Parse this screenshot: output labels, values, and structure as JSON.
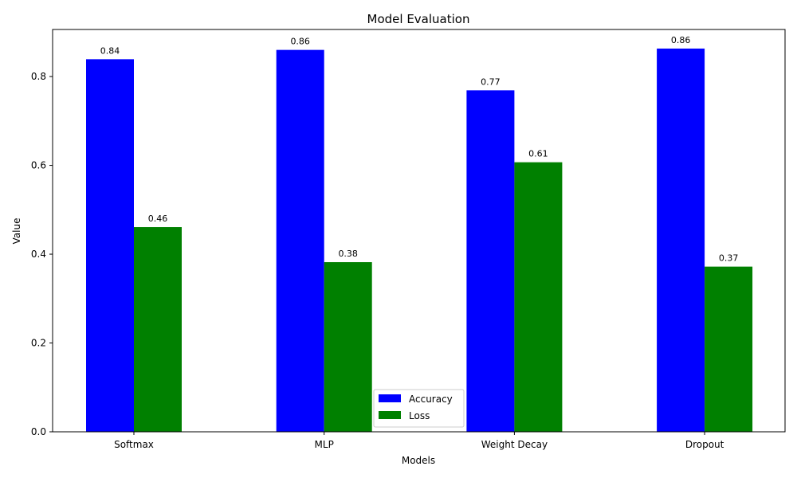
{
  "chart_data": {
    "type": "bar",
    "title": "Model Evaluation",
    "xlabel": "Models",
    "ylabel": "Value",
    "categories": [
      "Softmax",
      "MLP",
      "Weight Decay",
      "Dropout"
    ],
    "series": [
      {
        "name": "Accuracy",
        "color": "#0000ff",
        "values": [
          0.839,
          0.86,
          0.769,
          0.863
        ],
        "labels": [
          "0.84",
          "0.86",
          "0.77",
          "0.86"
        ]
      },
      {
        "name": "Loss",
        "color": "#008000",
        "values": [
          0.461,
          0.382,
          0.607,
          0.372
        ],
        "labels": [
          "0.46",
          "0.38",
          "0.61",
          "0.37"
        ]
      }
    ],
    "ylim": [
      0,
      0.906
    ],
    "yticks": [
      "0.0",
      "0.2",
      "0.4",
      "0.6",
      "0.8"
    ],
    "grid": false,
    "legend_position": "bottom-center"
  }
}
